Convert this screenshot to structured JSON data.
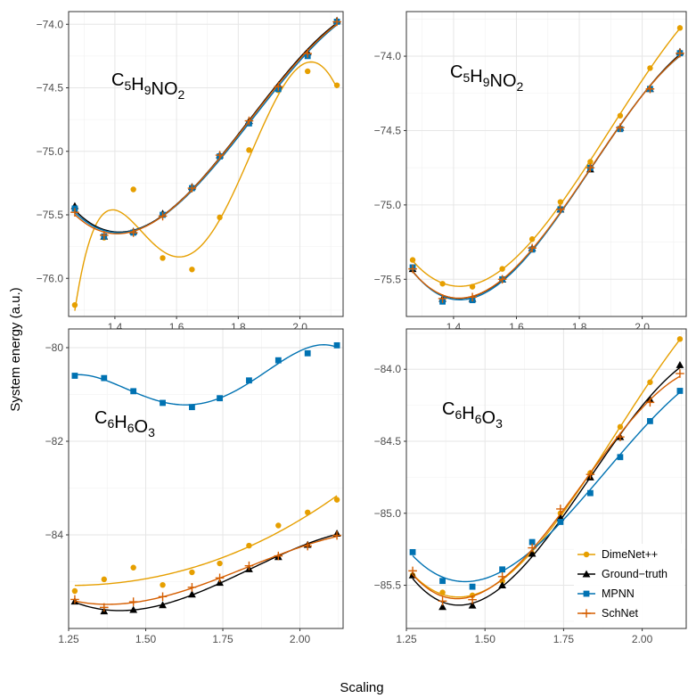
{
  "xlabel": "Scaling",
  "ylabel": "System energy (a.u.)",
  "legend": {
    "position": "bottom-right of lower-right panel",
    "items": [
      {
        "name": "DimeNet++",
        "color": "#E69F00",
        "marker": "circle"
      },
      {
        "name": "Ground−truth",
        "color": "#000000",
        "marker": "triangle"
      },
      {
        "name": "MPNN",
        "color": "#0072B2",
        "marker": "square"
      },
      {
        "name": "SchNet",
        "color": "#D55E00",
        "marker": "plus"
      }
    ]
  },
  "colors": {
    "DimeNet++": "#E69F00",
    "Ground-truth": "#000000",
    "MPNN": "#0072B2",
    "SchNet": "#D55E00"
  },
  "chart_data": [
    {
      "type": "line",
      "panel": "top-left",
      "title": "",
      "annotation": {
        "main": [
          "C",
          "H",
          "NO"
        ],
        "subs": [
          "5",
          "9",
          "2"
        ]
      },
      "xlim": [
        1.25,
        2.14
      ],
      "ylim": [
        -76.3,
        -73.9
      ],
      "xticks": [
        {
          "v": 1.4,
          "label": "1.4"
        },
        {
          "v": 1.6,
          "label": "1.6"
        },
        {
          "v": 1.8,
          "label": "1.8"
        },
        {
          "v": 2.0,
          "label": "2.0"
        }
      ],
      "yticks": [
        {
          "v": -74.0,
          "label": "−74.0"
        },
        {
          "v": -74.5,
          "label": "−74.5"
        },
        {
          "v": -75.0,
          "label": "−75.0"
        },
        {
          "v": -75.5,
          "label": "−75.5"
        },
        {
          "v": -76.0,
          "label": "−76.0"
        }
      ],
      "show_xtick_labels": true,
      "x": [
        1.27,
        1.365,
        1.46,
        1.555,
        1.65,
        1.74,
        1.835,
        1.93,
        2.025,
        2.12
      ],
      "series": [
        {
          "name": "DimeNet++",
          "values": [
            -76.21,
            -75.68,
            -75.3,
            -75.84,
            -75.93,
            -75.52,
            -74.99,
            -74.52,
            -74.37,
            -74.48
          ]
        },
        {
          "name": "Ground-truth",
          "values": [
            -75.43,
            -75.67,
            -75.63,
            -75.49,
            -75.28,
            -75.03,
            -74.76,
            -74.48,
            -74.22,
            -73.97
          ]
        },
        {
          "name": "MPNN",
          "values": [
            -75.45,
            -75.67,
            -75.64,
            -75.5,
            -75.29,
            -75.04,
            -74.78,
            -74.51,
            -74.25,
            -73.98
          ]
        },
        {
          "name": "SchNet",
          "values": [
            -75.48,
            -75.66,
            -75.64,
            -75.51,
            -75.29,
            -75.03,
            -74.76,
            -74.49,
            -74.23,
            -73.98
          ]
        }
      ],
      "fit_order": {
        "DimeNet++": 5,
        "Ground-truth": 3,
        "MPNN": 3,
        "SchNet": 3
      },
      "grid": true
    },
    {
      "type": "line",
      "panel": "top-right",
      "title": "",
      "annotation": {
        "main": [
          "C",
          "H",
          "NO"
        ],
        "subs": [
          "5",
          "9",
          "2"
        ]
      },
      "xlim": [
        1.25,
        2.14
      ],
      "ylim": [
        -75.75,
        -73.7
      ],
      "xticks": [
        {
          "v": 1.4,
          "label": "1.4"
        },
        {
          "v": 1.6,
          "label": "1.6"
        },
        {
          "v": 1.8,
          "label": "1.8"
        },
        {
          "v": 2.0,
          "label": "2.0"
        }
      ],
      "yticks": [
        {
          "v": -74.0,
          "label": "−74.0"
        },
        {
          "v": -74.5,
          "label": "−74.5"
        },
        {
          "v": -75.0,
          "label": "−75.0"
        },
        {
          "v": -75.5,
          "label": "−75.5"
        }
      ],
      "show_xtick_labels": true,
      "x": [
        1.27,
        1.365,
        1.46,
        1.555,
        1.65,
        1.74,
        1.835,
        1.93,
        2.025,
        2.12
      ],
      "series": [
        {
          "name": "DimeNet++",
          "values": [
            -75.37,
            -75.53,
            -75.55,
            -75.43,
            -75.23,
            -74.98,
            -74.71,
            -74.4,
            -74.08,
            -73.81
          ]
        },
        {
          "name": "Ground-truth",
          "values": [
            -75.43,
            -75.63,
            -75.63,
            -75.5,
            -75.29,
            -75.03,
            -74.76,
            -74.48,
            -74.22,
            -73.97
          ]
        },
        {
          "name": "MPNN",
          "values": [
            -75.42,
            -75.65,
            -75.64,
            -75.5,
            -75.3,
            -75.03,
            -74.75,
            -74.49,
            -74.22,
            -73.98
          ]
        },
        {
          "name": "SchNet",
          "values": [
            -75.43,
            -75.63,
            -75.62,
            -75.5,
            -75.29,
            -75.03,
            -74.75,
            -74.48,
            -74.22,
            -73.98
          ]
        }
      ],
      "fit_order": {
        "DimeNet++": 3,
        "Ground-truth": 3,
        "MPNN": 3,
        "SchNet": 3
      },
      "grid": true
    },
    {
      "type": "line",
      "panel": "bottom-left",
      "title": "",
      "annotation": {
        "main": [
          "C",
          "H",
          "O"
        ],
        "subs": [
          "6",
          "6",
          "3"
        ]
      },
      "xlim": [
        1.25,
        2.14
      ],
      "ylim": [
        -86.0,
        -79.6
      ],
      "xticks": [
        {
          "v": 1.25,
          "label": "1.25"
        },
        {
          "v": 1.5,
          "label": "1.50"
        },
        {
          "v": 1.75,
          "label": "1.75"
        },
        {
          "v": 2.0,
          "label": "2.00"
        }
      ],
      "yticks": [
        {
          "v": -80,
          "label": "−80"
        },
        {
          "v": -82,
          "label": "−82"
        },
        {
          "v": -84,
          "label": "−84"
        }
      ],
      "show_xtick_labels": true,
      "x": [
        1.27,
        1.365,
        1.46,
        1.555,
        1.65,
        1.74,
        1.835,
        1.93,
        2.025,
        2.12
      ],
      "series": [
        {
          "name": "DimeNet++",
          "values": [
            -85.2,
            -84.95,
            -84.7,
            -85.07,
            -84.8,
            -84.61,
            -84.23,
            -83.8,
            -83.52,
            -83.25
          ]
        },
        {
          "name": "Ground-truth",
          "values": [
            -85.42,
            -85.63,
            -85.6,
            -85.5,
            -85.27,
            -85.02,
            -84.73,
            -84.47,
            -84.21,
            -83.97
          ]
        },
        {
          "name": "MPNN",
          "values": [
            -80.6,
            -80.65,
            -80.93,
            -81.18,
            -81.27,
            -81.08,
            -80.7,
            -80.27,
            -80.12,
            -79.95
          ]
        },
        {
          "name": "SchNet",
          "values": [
            -85.38,
            -85.55,
            -85.43,
            -85.32,
            -85.12,
            -84.92,
            -84.66,
            -84.45,
            -84.24,
            -84.01
          ]
        }
      ],
      "fit_order": {
        "DimeNet++": 3,
        "Ground-truth": 3,
        "MPNN": 4,
        "SchNet": 3
      },
      "grid": true
    },
    {
      "type": "line",
      "panel": "bottom-right",
      "title": "",
      "annotation": {
        "main": [
          "C",
          "H",
          "O"
        ],
        "subs": [
          "6",
          "6",
          "3"
        ]
      },
      "xlim": [
        1.25,
        2.14
      ],
      "ylim": [
        -85.8,
        -83.72
      ],
      "xticks": [
        {
          "v": 1.25,
          "label": "1.25"
        },
        {
          "v": 1.5,
          "label": "1.50"
        },
        {
          "v": 1.75,
          "label": "1.75"
        },
        {
          "v": 2.0,
          "label": "2.00"
        }
      ],
      "yticks": [
        {
          "v": -84.0,
          "label": "−84.0"
        },
        {
          "v": -84.5,
          "label": "−84.5"
        },
        {
          "v": -85.0,
          "label": "−85.0"
        },
        {
          "v": -85.5,
          "label": "−85.5"
        }
      ],
      "show_xtick_labels": true,
      "x": [
        1.27,
        1.365,
        1.46,
        1.555,
        1.65,
        1.74,
        1.835,
        1.93,
        2.025,
        2.12
      ],
      "series": [
        {
          "name": "DimeNet++",
          "values": [
            -85.43,
            -85.55,
            -85.57,
            -85.47,
            -85.28,
            -85.0,
            -84.72,
            -84.4,
            -84.09,
            -83.79
          ]
        },
        {
          "name": "Ground-truth",
          "values": [
            -85.43,
            -85.65,
            -85.64,
            -85.5,
            -85.28,
            -85.03,
            -84.75,
            -84.47,
            -84.21,
            -83.97
          ]
        },
        {
          "name": "MPNN",
          "values": [
            -85.27,
            -85.47,
            -85.51,
            -85.39,
            -85.2,
            -85.06,
            -84.86,
            -84.61,
            -84.36,
            -84.15
          ]
        },
        {
          "name": "SchNet",
          "values": [
            -85.4,
            -85.61,
            -85.6,
            -85.44,
            -85.24,
            -84.97,
            -84.73,
            -84.47,
            -84.23,
            -84.03
          ]
        }
      ],
      "fit_order": {
        "DimeNet++": 3,
        "Ground-truth": 3,
        "MPNN": 3,
        "SchNet": 3
      },
      "grid": true
    }
  ]
}
